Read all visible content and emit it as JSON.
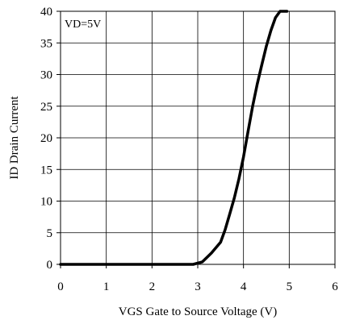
{
  "chart_data": {
    "type": "line",
    "title": "",
    "xlabel": "VGS Gate to Source Voltage (V)",
    "ylabel": "ID Drain Current",
    "xlim": [
      0,
      6
    ],
    "ylim": [
      0,
      40
    ],
    "xticks": [
      0,
      1,
      2,
      3,
      4,
      5,
      6
    ],
    "yticks": [
      0,
      5,
      10,
      15,
      20,
      25,
      30,
      35,
      40
    ],
    "grid": true,
    "annotation": "VD=5V",
    "series": [
      {
        "color": "#000000",
        "x": [
          0,
          1,
          2,
          2.7,
          2.9,
          3.1,
          3.3,
          3.5,
          3.6,
          3.7,
          3.8,
          3.9,
          4.0,
          4.1,
          4.2,
          4.3,
          4.4,
          4.5,
          4.6,
          4.7,
          4.8,
          4.9,
          4.95
        ],
        "y": [
          0,
          0,
          0,
          0,
          0,
          0.4,
          1.8,
          3.5,
          5.5,
          8.0,
          10.5,
          13.5,
          17.0,
          21.0,
          25.0,
          28.5,
          31.5,
          34.5,
          37.0,
          39.0,
          40.0,
          40.0,
          40.0
        ]
      }
    ]
  }
}
